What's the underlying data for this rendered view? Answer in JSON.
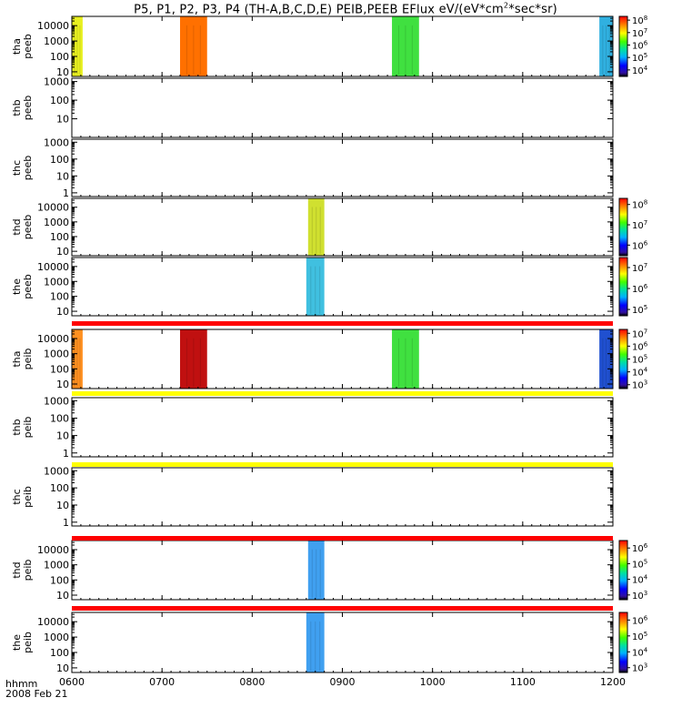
{
  "title_parts": {
    "probes": "P5, P1, P2, P3, P4",
    "spacecraft": "(TH-A,B,C,D,E)",
    "instruments": "PEIB,PEEB",
    "quantity": "EFlux",
    "units_prefix": "eV/(eV*cm",
    "units_sup": "2",
    "units_suffix": "*sec*sr)"
  },
  "x_axis": {
    "label_line1": "hhmm",
    "label_line2": "2008 Feb 21",
    "range": [
      600,
      1200
    ],
    "tick_labels": [
      "0600",
      "0700",
      "0800",
      "0900",
      "1000",
      "1100",
      "1200"
    ],
    "tick_values": [
      600,
      700,
      800,
      900,
      1000,
      1100,
      1200
    ]
  },
  "chart_data": {
    "type": "heatmap",
    "panels": [
      {
        "id": "tha_peeb",
        "ylabel": [
          "tha",
          "peeb"
        ],
        "y_scale": "log",
        "yticks": [
          "10",
          "100",
          "1000",
          "10000"
        ],
        "yrange": [
          5,
          40000
        ],
        "colorbar_labels": [
          "10^4",
          "10^5",
          "10^6",
          "10^7",
          "10^8"
        ],
        "colorbar_range": [
          3000,
          200000000
        ],
        "bands": [
          {
            "start": 600,
            "end": 612,
            "color": "#e8f020"
          },
          {
            "start": 720,
            "end": 750,
            "color": "#ff7000"
          },
          {
            "start": 955,
            "end": 985,
            "color": "#40e040"
          },
          {
            "start": 1185,
            "end": 1200,
            "color": "#30b0e0"
          }
        ]
      },
      {
        "id": "thb_peeb",
        "ylabel": [
          "thb",
          "peeb"
        ],
        "y_scale": "log",
        "yticks": [
          "10",
          "100",
          "1000"
        ],
        "yrange": [
          1,
          1500
        ],
        "bands": []
      },
      {
        "id": "thc_peeb",
        "ylabel": [
          "thc",
          "peeb"
        ],
        "y_scale": "log",
        "yticks": [
          "1",
          "10",
          "100",
          "1000"
        ],
        "yrange": [
          0.6,
          1500
        ],
        "bands": []
      },
      {
        "id": "thd_peeb",
        "ylabel": [
          "thd",
          "peeb"
        ],
        "y_scale": "log",
        "yticks": [
          "10",
          "100",
          "1000",
          "10000"
        ],
        "yrange": [
          5,
          40000
        ],
        "colorbar_labels": [
          "10^6",
          "10^7",
          "10^8"
        ],
        "colorbar_range": [
          300000,
          200000000
        ],
        "bands": [
          {
            "start": 862,
            "end": 880,
            "color": "#d0e030"
          }
        ]
      },
      {
        "id": "the_peeb",
        "ylabel": [
          "the",
          "peeb"
        ],
        "y_scale": "log",
        "yticks": [
          "10",
          "100",
          "1000",
          "10000"
        ],
        "yrange": [
          5,
          40000
        ],
        "colorbar_labels": [
          "10^5",
          "10^6",
          "10^7"
        ],
        "colorbar_range": [
          50000,
          30000000
        ],
        "bands": [
          {
            "start": 860,
            "end": 880,
            "color": "#40c0e0"
          }
        ]
      },
      {
        "id": "tha_peib",
        "ylabel": [
          "tha",
          "peib"
        ],
        "y_scale": "log",
        "yticks": [
          "10",
          "100",
          "1000",
          "10000"
        ],
        "yrange": [
          5,
          40000
        ],
        "colorbar_labels": [
          "10^3",
          "10^4",
          "10^5",
          "10^6",
          "10^7"
        ],
        "colorbar_range": [
          500,
          20000000
        ],
        "bands": [
          {
            "start": 600,
            "end": 612,
            "color": "#ff9020"
          },
          {
            "start": 720,
            "end": 750,
            "color": "#c01010"
          },
          {
            "start": 955,
            "end": 985,
            "color": "#40e040"
          },
          {
            "start": 1185,
            "end": 1200,
            "color": "#2050d0"
          }
        ]
      },
      {
        "id": "thb_peib",
        "ylabel": [
          "thb",
          "peib"
        ],
        "y_scale": "log",
        "yticks": [
          "1",
          "10",
          "100",
          "1000"
        ],
        "yrange": [
          0.6,
          1500
        ],
        "bands": []
      },
      {
        "id": "thc_peib",
        "ylabel": [
          "thc",
          "peib"
        ],
        "y_scale": "log",
        "yticks": [
          "1",
          "10",
          "100",
          "1000"
        ],
        "yrange": [
          0.6,
          1500
        ],
        "bands": []
      },
      {
        "id": "thd_peib",
        "ylabel": [
          "thd",
          "peib"
        ],
        "y_scale": "log",
        "yticks": [
          "10",
          "100",
          "1000",
          "10000"
        ],
        "yrange": [
          5,
          40000
        ],
        "colorbar_labels": [
          "10^3",
          "10^4",
          "10^5",
          "10^6"
        ],
        "colorbar_range": [
          500,
          3000000
        ],
        "bands": [
          {
            "start": 862,
            "end": 880,
            "color": "#40a0f0"
          }
        ]
      },
      {
        "id": "the_peib",
        "ylabel": [
          "the",
          "peib"
        ],
        "y_scale": "log",
        "yticks": [
          "10",
          "100",
          "1000",
          "10000"
        ],
        "yrange": [
          5,
          40000
        ],
        "colorbar_labels": [
          "10^3",
          "10^4",
          "10^5",
          "10^6"
        ],
        "colorbar_range": [
          500,
          3000000
        ],
        "bands": [
          {
            "start": 860,
            "end": 880,
            "color": "#40a0f0"
          }
        ]
      }
    ]
  },
  "colors": {
    "separator_red": "#ff0000",
    "separator_yellow": "#ffff00",
    "axis": "#000000"
  }
}
